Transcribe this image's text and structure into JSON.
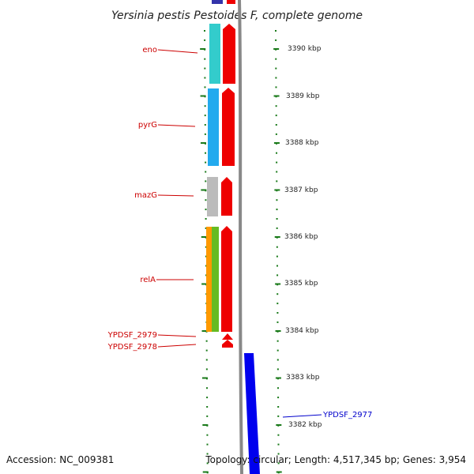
{
  "title": "Yersinia pestis Pestoides F, complete genome",
  "accession": "Accession: NC_009381",
  "summary": "Topology: circular; Length: 4,517,345 bp; Genes: 3,954",
  "colors": {
    "gene_label": "#cc0000",
    "blue_label": "#0000cc",
    "tick": "#1a7a1a",
    "backbone": "#888888",
    "cds_red": "#ee0000",
    "feature_blue": "#0000ee"
  },
  "kbp_ticks": [
    "3390 kbp",
    "3389 kbp",
    "3388 kbp",
    "3387 kbp",
    "3386 kbp",
    "3385 kbp",
    "3384 kbp",
    "3383 kbp",
    "3382 kbp"
  ],
  "gene_labels": [
    {
      "name": "eno",
      "color": "red"
    },
    {
      "name": "pyrG",
      "color": "red"
    },
    {
      "name": "mazG",
      "color": "red"
    },
    {
      "name": "relA",
      "color": "red"
    },
    {
      "name": "YPDSF_2979",
      "color": "red"
    },
    {
      "name": "YPDSF_2978",
      "color": "red"
    },
    {
      "name": "YPDSF_2977",
      "color": "blue"
    }
  ]
}
